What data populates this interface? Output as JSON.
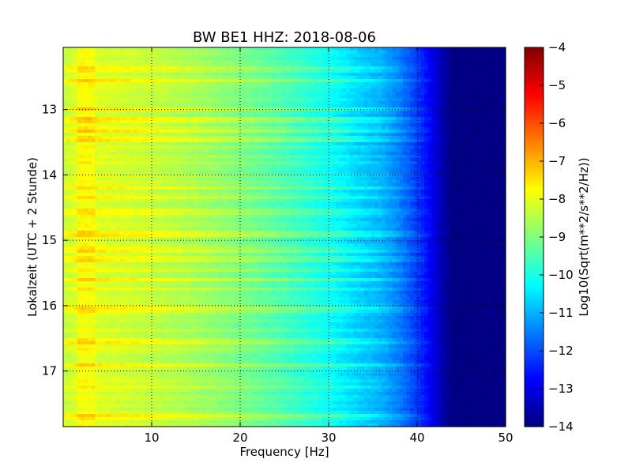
{
  "chart_data": {
    "type": "heatmap",
    "title": "BW BE1 HHZ: 2018-08-06",
    "xlabel": "Frequency [Hz]",
    "ylabel": "Lokalzeit (UTC + 2 Stunde)",
    "xlim": [
      0,
      50
    ],
    "ylim": [
      12.05,
      17.85
    ],
    "y_inverted": true,
    "x_ticks": [
      10,
      20,
      30,
      40,
      50
    ],
    "y_ticks": [
      13,
      14,
      15,
      16,
      17
    ],
    "grid": true,
    "colormap": "jet",
    "colorbar": {
      "label": "Log10(Sqrt(m**2/s**2/Hz))",
      "range": [
        -14,
        -4
      ],
      "ticks": [
        -4,
        -5,
        -6,
        -7,
        -8,
        -9,
        -10,
        -11,
        -12,
        -13,
        -14
      ]
    },
    "mean_spectrum": {
      "frequency_hz": [
        0,
        2,
        5,
        10,
        15,
        20,
        25,
        30,
        33,
        36,
        38,
        40,
        41,
        42,
        43,
        44,
        45,
        50
      ],
      "log10_amplitude": [
        -8.3,
        -8.0,
        -8.1,
        -8.3,
        -8.6,
        -9.0,
        -9.5,
        -10.1,
        -10.6,
        -11.0,
        -11.5,
        -12.2,
        -12.6,
        -13.1,
        -13.6,
        -14.0,
        -14.0,
        -14.0
      ]
    },
    "bright_bands_hours": [
      12.4,
      12.55,
      13.0,
      13.15,
      13.3,
      13.45,
      14.2,
      14.35,
      14.55,
      14.9,
      15.15,
      15.28,
      15.45,
      15.6,
      15.75,
      16.05,
      16.55,
      16.9,
      17.25,
      17.7
    ]
  }
}
